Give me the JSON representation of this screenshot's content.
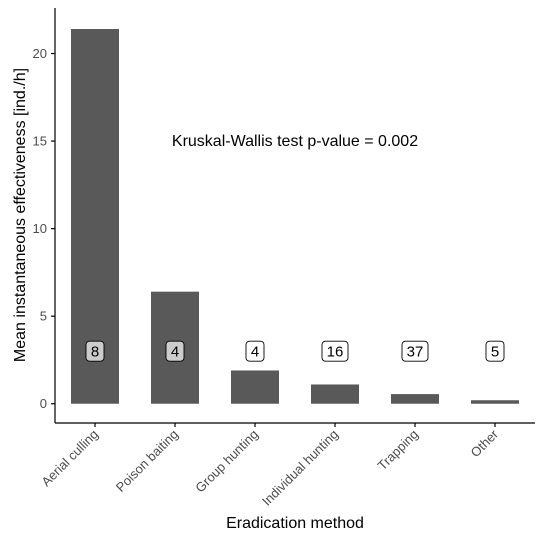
{
  "chart_data": {
    "type": "bar",
    "categories": [
      "Aerial culling",
      "Poison baiting",
      "Group hunting",
      "Individual hunting",
      "Trapping",
      "Other"
    ],
    "values": [
      21.4,
      6.4,
      1.9,
      1.1,
      0.55,
      0.2
    ],
    "sample_sizes": [
      "8",
      "4",
      "4",
      "16",
      "37",
      "5"
    ],
    "sample_label_fill": [
      "#cccccc",
      "#cccccc",
      "#ffffff",
      "#ffffff",
      "#ffffff",
      "#ffffff"
    ],
    "xlabel": "Eradication method",
    "ylabel": "Mean instantaneous effectiveness [ind./h]",
    "yticks": [
      "0",
      "5",
      "10",
      "15",
      "20"
    ],
    "ylim": [
      -1.1,
      22.6
    ],
    "annotation": "Kruskal-Wallis test p-value = 0.002",
    "bar_color": "#595959",
    "grid": false
  }
}
